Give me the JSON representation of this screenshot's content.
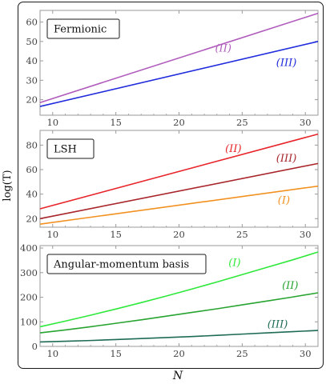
{
  "figure": {
    "ylabel": "log(T)",
    "xlabel": "N"
  },
  "chart_data": [
    {
      "type": "line",
      "title": "Fermionic",
      "xlim": [
        9,
        31
      ],
      "ylim": [
        12,
        66
      ],
      "xticks": [
        10,
        15,
        20,
        25,
        30
      ],
      "yticks": [
        20,
        30,
        40,
        50,
        60
      ],
      "xticklabels": [
        "10",
        "15",
        "20",
        "25",
        "30"
      ],
      "yticklabels": [
        "20",
        "30",
        "40",
        "50",
        "60"
      ],
      "grid": false,
      "series": [
        {
          "name": "(II)",
          "color": "#b05cbc",
          "x": [
            9,
            31
          ],
          "y": [
            18.5,
            64.5
          ],
          "label_at": [
            23.5,
            46.5
          ]
        },
        {
          "name": "(III)",
          "color": "#1f2bdc",
          "x": [
            9,
            31
          ],
          "y": [
            16.5,
            50
          ],
          "label_at": [
            28.5,
            39
          ]
        }
      ]
    },
    {
      "type": "line",
      "title": "LSH",
      "xlim": [
        9,
        31
      ],
      "ylim": [
        13,
        92
      ],
      "xticks": [
        10,
        15,
        20,
        25,
        30
      ],
      "yticks": [
        20,
        40,
        60,
        80
      ],
      "xticklabels": [
        "10",
        "15",
        "20",
        "25",
        "30"
      ],
      "yticklabels": [
        "20",
        "40",
        "60",
        "80"
      ],
      "grid": false,
      "series": [
        {
          "name": "(II)",
          "color": "#e8252a",
          "x": [
            9,
            31
          ],
          "y": [
            28,
            89
          ],
          "label_at": [
            24.3,
            77
          ]
        },
        {
          "name": "(III)",
          "color": "#a8262b",
          "x": [
            9,
            31
          ],
          "y": [
            20,
            65
          ],
          "label_at": [
            28.5,
            69
          ]
        },
        {
          "name": "(I)",
          "color": "#f29020",
          "x": [
            9,
            31
          ],
          "y": [
            15.5,
            46.5
          ],
          "label_at": [
            28.3,
            35
          ]
        }
      ]
    },
    {
      "type": "line",
      "title": "Angular-momentum basis",
      "xlim": [
        9,
        31
      ],
      "ylim": [
        0,
        410
      ],
      "xticks": [
        10,
        15,
        20,
        25,
        30
      ],
      "yticks": [
        0,
        100,
        200,
        300,
        400
      ],
      "xticklabels": [
        "10",
        "15",
        "20",
        "25",
        "30"
      ],
      "yticklabels": [
        "0",
        "100",
        "200",
        "300",
        "400"
      ],
      "grid": false,
      "series": [
        {
          "name": "(I)",
          "color": "#2ee83a",
          "x": [
            9,
            11,
            13,
            15,
            17,
            19,
            21,
            23,
            25,
            27,
            29,
            31
          ],
          "y": [
            80,
            103,
            127,
            152,
            178,
            205,
            233,
            262,
            292,
            322,
            352,
            384
          ],
          "label_at": [
            24.4,
            340
          ]
        },
        {
          "name": "(II)",
          "color": "#28a431",
          "x": [
            9,
            11,
            13,
            15,
            17,
            19,
            21,
            23,
            25,
            27,
            29,
            31
          ],
          "y": [
            55,
            67,
            80,
            94,
            108,
            123,
            138,
            153,
            169,
            185,
            201,
            218
          ],
          "label_at": [
            28.8,
            248
          ]
        },
        {
          "name": "(III)",
          "color": "#1e6b56",
          "x": [
            9,
            11,
            13,
            15,
            17,
            19,
            21,
            23,
            25,
            27,
            29,
            31
          ],
          "y": [
            18,
            21,
            24,
            28,
            32,
            36,
            40,
            45,
            50,
            55,
            60,
            65
          ],
          "label_at": [
            27.8,
            90
          ]
        }
      ]
    }
  ]
}
